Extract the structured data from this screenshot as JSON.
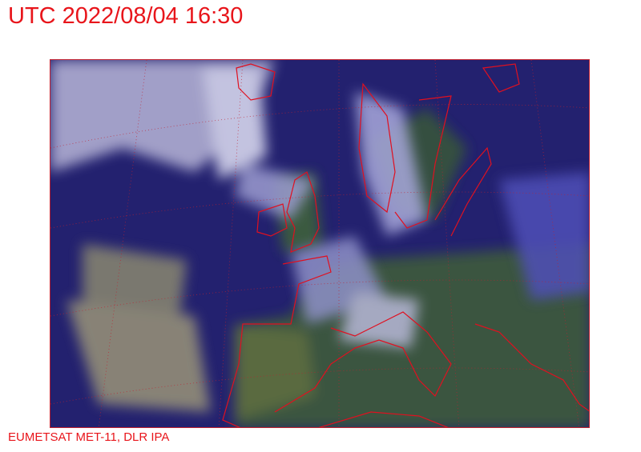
{
  "title": "UTC 2022/08/04 16:30",
  "credit": "EUMETSAT MET-11, DLR IPA",
  "map": {
    "type": "satellite image",
    "region": "Europe and North Atlantic",
    "overlay": "coastlines and lat/lon grid",
    "colors": {
      "ocean": "#1e1c6e",
      "cloud": "#c8c8e8",
      "land": "#3d5a3a",
      "coastline": "#e01020"
    }
  }
}
